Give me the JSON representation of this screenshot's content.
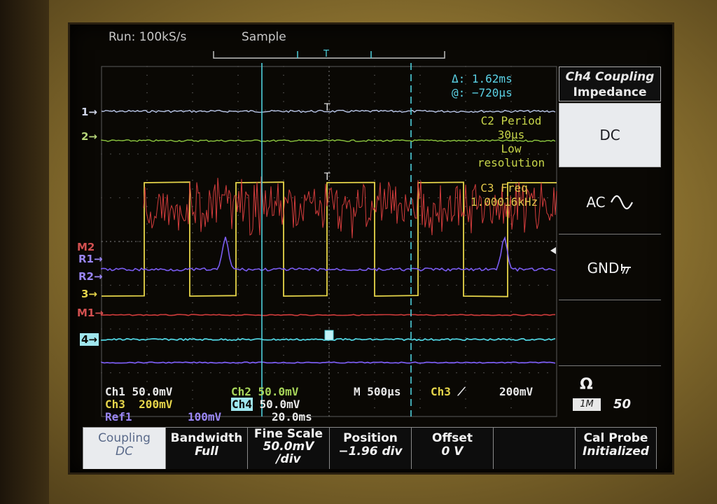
{
  "header": {
    "run_status": "Run: 100kS/s",
    "acq_mode": "Sample"
  },
  "cursor_readout": {
    "delta": "Δ: 1.62ms",
    "at": "@: −720µs"
  },
  "measurements": {
    "c2": {
      "label": "C2 Period",
      "value": "30µs",
      "note_line1": "Low",
      "note_line2": "resolution"
    },
    "c3": {
      "label": "C3 Freq",
      "value": "1.00016kHz"
    }
  },
  "channel_markers": {
    "ch1": "1→",
    "ch2": "2→",
    "m2": "M2",
    "r1": "R1→",
    "r2": "R2→",
    "ch3": "3→",
    "m1": "M1→",
    "ch4": "4→"
  },
  "status": {
    "ch1_label": "Ch1",
    "ch1_scale": "50.0mV",
    "ch2_label": "Ch2",
    "ch2_scale": "50.0mV",
    "ch3_label": "Ch3",
    "ch3_scale": "200mV",
    "ch4_label": "Ch4",
    "ch4_scale": "50.0mV",
    "ref1_label": "Ref1",
    "ref1_scale": "100mV",
    "ref1_time": "20.0ms",
    "timebase_label": "M",
    "timebase": "500µs",
    "trigger_source": "Ch3",
    "trigger_level": "200mV"
  },
  "side_menu": {
    "title_line1": "Ch4 Coupling",
    "title_line2": "Impedance",
    "dc": "DC",
    "ac": "AC",
    "gnd": "GND",
    "impedance_symbol": "Ω",
    "impedance_option": "1M",
    "impedance_value": "50"
  },
  "bottom_menu": {
    "coupling_label": "Coupling",
    "coupling_value": "DC",
    "bandwidth_label": "Bandwidth",
    "bandwidth_value": "Full",
    "fine_scale_label": "Fine Scale",
    "fine_scale_value1": "50.0mV",
    "fine_scale_value2": "/div",
    "position_label": "Position",
    "position_value": "−1.96 div",
    "offset_label": "Offset",
    "offset_value": "0 V",
    "cal_probe_label": "Cal Probe",
    "cal_probe_value": "Initialized"
  },
  "colors": {
    "ch1": "#b9c6e8",
    "ch2": "#8cc63f",
    "ch3": "#e6d54a",
    "ch4": "#4fd0dc",
    "math1": "#d23c3c",
    "ref": "#7a5cf0",
    "cursor": "#4fd0dc"
  }
}
